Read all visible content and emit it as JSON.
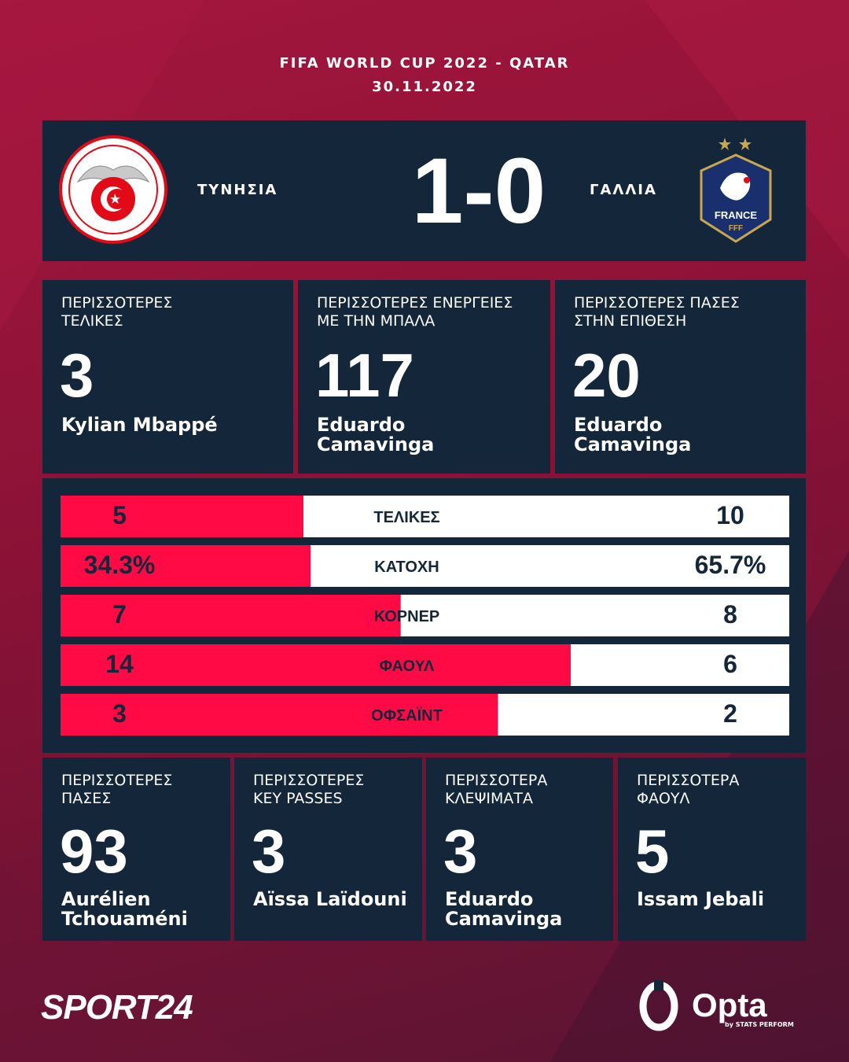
{
  "header": {
    "competition": "FIFA WORLD CUP 2022 - QATAR",
    "date": "30.11.2022"
  },
  "match": {
    "home": "ΤΥΝΗΣΙΑ",
    "score": "1-0",
    "away": "ΓΑΛΛΙΑ",
    "away_badge": [
      "FRANCE",
      "FFF"
    ]
  },
  "top_stats": [
    {
      "label": [
        "ΠΕΡΙΣΣΟΤΕΡΕΣ",
        "ΤΕΛΙΚΕΣ"
      ],
      "value": 3,
      "player": [
        "Kylian Mbappé"
      ]
    },
    {
      "label": [
        "ΠΕΡΙΣΣΟΤΕΡΕΣ ΕΝΕΡΓΕΙΕΣ",
        "ΜΕ ΤΗΝ ΜΠΑΛΑ"
      ],
      "value": 117,
      "player": [
        "Eduardo",
        "Camavinga"
      ]
    },
    {
      "label": [
        "ΠΕΡΙΣΣΟΤΕΡΕΣ ΠΑΣΕΣ",
        "ΣΤΗΝ ΕΠΙΘΕΣΗ"
      ],
      "value": 20,
      "player": [
        "Eduardo",
        "Camavinga"
      ]
    }
  ],
  "chart_data": {
    "type": "comparison-bar",
    "categories": [
      "ΤΕΛΙΚΕΣ",
      "ΚΑΤΟΧΗ",
      "ΚΟΡΝΕΡ",
      "ΦΑΟΥΛ",
      "ΟΦΣΑΪΝΤ"
    ],
    "series": [
      {
        "color": "#ff0a45",
        "values": [
          5,
          34.3,
          7,
          14,
          3
        ],
        "value_labels": [
          "5",
          "34.3%",
          "7",
          "14",
          "3"
        ]
      },
      {
        "color": "#ffffff",
        "values": [
          10,
          65.7,
          8,
          6,
          2
        ],
        "value_labels": [
          "10",
          "65.7%",
          "8",
          "6",
          "2"
        ]
      }
    ]
  },
  "bottom_stats": [
    {
      "label": [
        "ΠΕΡΙΣΣΟΤΕΡΕΣ",
        "ΠΑΣΕΣ"
      ],
      "value": 93,
      "player": [
        "Aurélien",
        "Tchouaméni"
      ]
    },
    {
      "label": [
        "ΠΕΡΙΣΣΟΤΕΡΕΣ",
        "KEY PASSES"
      ],
      "value": 3,
      "player": [
        "Aïssa Laïdouni"
      ]
    },
    {
      "label": [
        "ΠΕΡΙΣΣΟΤΕΡΑ",
        "ΚΛΕΨΙΜΑΤΑ"
      ],
      "value": 3,
      "player": [
        "Eduardo",
        "Camavinga"
      ]
    },
    {
      "label": [
        "ΠΕΡΙΣΣΟΤΕΡΑ",
        "ΦΑΟΥΛ"
      ],
      "value": 5,
      "player": [
        "Issam Jebali"
      ]
    }
  ],
  "footer": {
    "brand": "SPORT24",
    "provider": "Opta",
    "provider_sub": "by STATS PERFORM"
  }
}
